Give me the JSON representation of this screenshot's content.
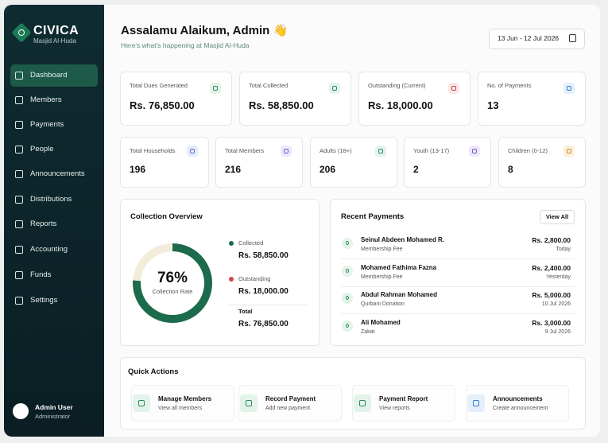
{
  "brand": {
    "name": "CIVICA",
    "subtitle": "Masjid Al-Huda"
  },
  "nav": [
    "Dashboard",
    "Members",
    "Payments",
    "People",
    "Announcements",
    "Distributions",
    "Reports",
    "Accounting",
    "Funds",
    "Settings"
  ],
  "user": {
    "name": "Admin User",
    "role": "Administrator"
  },
  "header": {
    "greeting": "Assalamu Alaikum, Admin 👋",
    "subtitle": "Here's what's happening at Masjid Al-Huda",
    "date_range": "13 Jun - 12 Jul 2026"
  },
  "stats_primary": [
    {
      "label": "Total Dues Generated",
      "value": "Rs. 76,850.00"
    },
    {
      "label": "Total Collected",
      "value": "Rs. 58,850.00"
    },
    {
      "label": "Outstanding (Current)",
      "value": "Rs. 18,000.00"
    },
    {
      "label": "No. of Payments",
      "value": "13"
    }
  ],
  "stats_secondary": [
    {
      "label": "Total Households",
      "value": "196"
    },
    {
      "label": "Total Members",
      "value": "216"
    },
    {
      "label": "Adults (18+)",
      "value": "206"
    },
    {
      "label": "Youth (13-17)",
      "value": "2"
    },
    {
      "label": "Children (0-12)",
      "value": "8"
    }
  ],
  "collection": {
    "title": "Collection Overview",
    "rate": 76,
    "rate_label": "76%",
    "rate_caption": "Collection Rate",
    "items": [
      {
        "label": "Collected",
        "value": "Rs. 58,850.00"
      },
      {
        "label": "Outstanding",
        "value": "Rs. 18,000.00"
      },
      {
        "label": "Total",
        "value": "Rs. 76,850.00"
      }
    ]
  },
  "recent": {
    "title": "Recent Payments",
    "action": "View All",
    "rows": [
      {
        "name": "Seinul Abdeen Mohamed R.",
        "type": "Membership Fee",
        "amount": "Rs. 2,800.00",
        "date": "Today"
      },
      {
        "name": "Mohamed Fathima Fazna",
        "type": "Membership Fee",
        "amount": "Rs. 2,400.00",
        "date": "Yesterday"
      },
      {
        "name": "Abdul Rahman Mohamed",
        "type": "Qurbani Donation",
        "amount": "Rs. 5,000.00",
        "date": "10 Jul 2026"
      },
      {
        "name": "Ali Mohamed",
        "type": "Zakat",
        "amount": "Rs. 3,000.00",
        "date": "9 Jul 2026"
      }
    ]
  },
  "quick": {
    "title": "Quick Actions",
    "items": [
      {
        "title": "Manage Members",
        "subtitle": "View all members"
      },
      {
        "title": "Record Payment",
        "subtitle": "Add new payment"
      },
      {
        "title": "Payment Report",
        "subtitle": "View reports"
      },
      {
        "title": "Announcements",
        "subtitle": "Create announcement"
      }
    ]
  }
}
